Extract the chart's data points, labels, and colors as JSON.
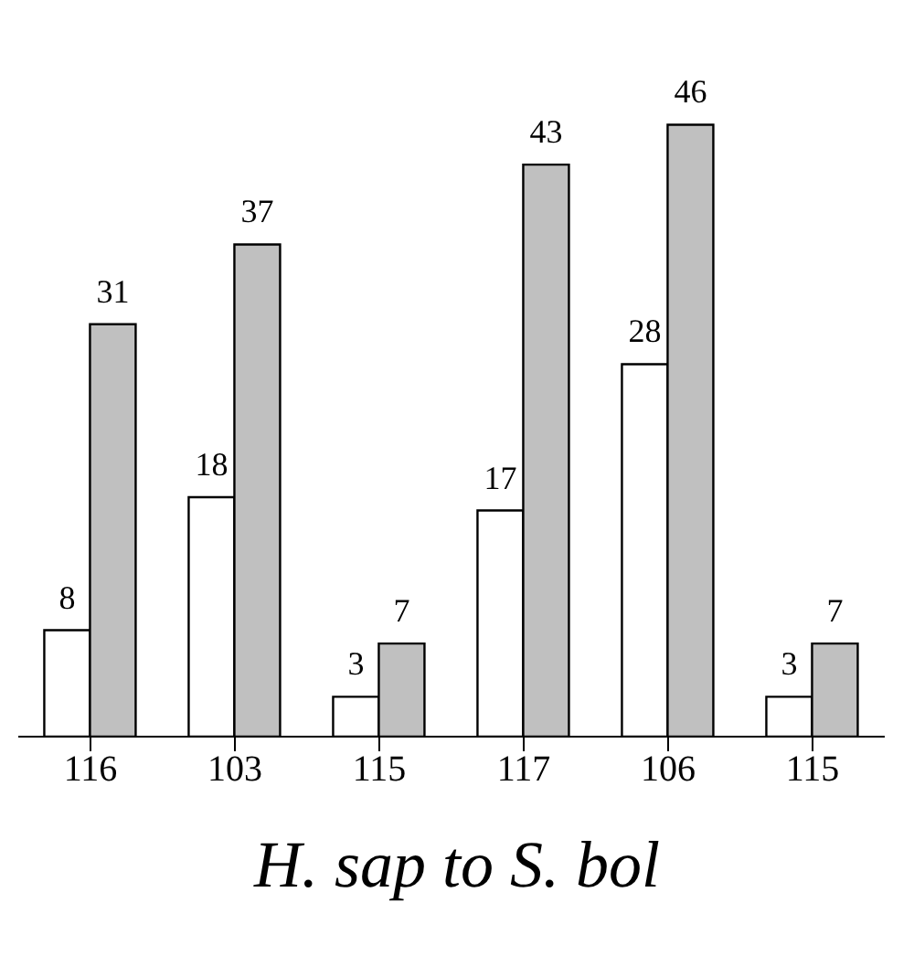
{
  "chart_data": {
    "type": "bar",
    "xlabel": "H. sap to S. bol",
    "categories": [
      "116",
      "103",
      "115",
      "117",
      "106",
      "115"
    ],
    "series": [
      {
        "color": "#ffffff",
        "values": [
          8,
          18,
          3,
          17,
          28,
          3
        ]
      },
      {
        "color": "#c0c0c0",
        "values": [
          31,
          37,
          7,
          43,
          46,
          7
        ]
      }
    ],
    "data_labels": true,
    "legend": false
  }
}
